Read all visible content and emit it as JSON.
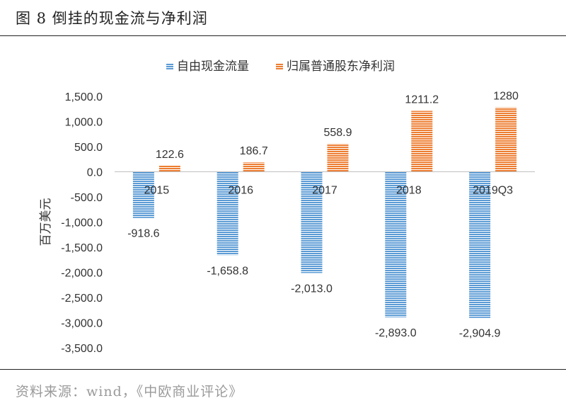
{
  "figure": {
    "title": "图 8  倒挂的现金流与净利润",
    "source": "资料来源：wind，《中欧商业评论》"
  },
  "colors": {
    "series_blue": "#5b9bd5",
    "series_orange": "#ed7d31",
    "axis": "#bfbfbf",
    "text": "#333333"
  },
  "chart_data": {
    "type": "bar",
    "title": "",
    "xlabel": "",
    "ylabel": "百万美元",
    "categories": [
      "2015",
      "2016",
      "2017",
      "2018",
      "2019Q3"
    ],
    "series": [
      {
        "name": "自由现金流量",
        "values": [
          -918.6,
          -1658.8,
          -2013.0,
          -2893.0,
          -2904.9
        ],
        "labels": [
          "-918.6",
          "-1,658.8",
          "-2,013.0",
          "-2,893.0",
          "-2,904.9"
        ],
        "color": "#5b9bd5",
        "pattern": "horizontal-stripes"
      },
      {
        "name": "归属普通股东净利润",
        "values": [
          122.6,
          186.7,
          558.9,
          1211.2,
          1280
        ],
        "labels": [
          "122.6",
          "186.7",
          "558.9",
          "1211.2",
          "1280"
        ],
        "color": "#ed7d31",
        "pattern": "horizontal-stripes"
      }
    ],
    "ylim": [
      -3500,
      1500
    ],
    "yticks": [
      1500,
      1000,
      500,
      0,
      -500,
      -1000,
      -1500,
      -2000,
      -2500,
      -3000,
      -3500
    ],
    "ytick_labels": [
      "1,500.0",
      "1,000.0",
      "500.0",
      "0.0",
      "-500.0",
      "-1,000.0",
      "-1,500.0",
      "-2,000.0",
      "-2,500.0",
      "-3,000.0",
      "-3,500.0"
    ],
    "grid": false,
    "legend_position": "top"
  }
}
